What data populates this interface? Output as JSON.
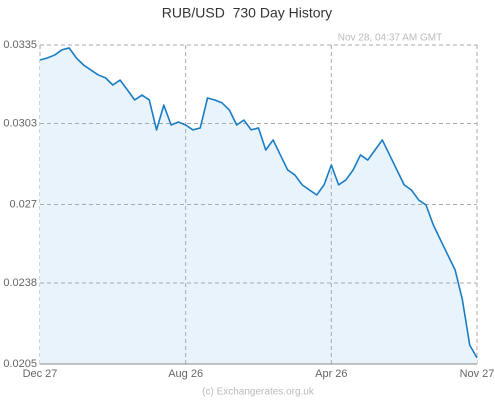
{
  "chart_data": {
    "type": "line",
    "title": "RUB/USD  730 Day History",
    "annotation": "Nov 28, 04:37 AM GMT",
    "credit": "(c) Exchangerates.org.uk",
    "categories": [
      "Dec 27",
      null,
      null,
      null,
      null,
      null,
      null,
      null,
      null,
      null,
      null,
      null,
      null,
      null,
      null,
      null,
      null,
      null,
      null,
      null,
      "Aug 26",
      null,
      null,
      null,
      null,
      null,
      null,
      null,
      null,
      null,
      null,
      null,
      null,
      null,
      null,
      null,
      null,
      null,
      null,
      null,
      "Apr 26",
      null,
      null,
      null,
      null,
      null,
      null,
      null,
      null,
      null,
      null,
      null,
      null,
      null,
      null,
      null,
      null,
      null,
      null,
      null,
      "Nov 27"
    ],
    "values": [
      0.03289,
      0.03297,
      0.03309,
      0.0333,
      0.03338,
      0.03297,
      0.03268,
      0.03248,
      0.03228,
      0.03216,
      0.03187,
      0.03207,
      0.03167,
      0.03126,
      0.03146,
      0.03126,
      0.03004,
      0.03105,
      0.03024,
      0.03036,
      0.03024,
      0.03004,
      0.03012,
      0.03134,
      0.03126,
      0.03114,
      0.03085,
      0.03024,
      0.03044,
      0.03004,
      0.03012,
      0.02922,
      0.02963,
      0.02902,
      0.02841,
      0.0282,
      0.0278,
      0.02759,
      0.02739,
      0.0278,
      0.02861,
      0.0278,
      0.028,
      0.02841,
      0.02902,
      0.02881,
      0.02922,
      0.02963,
      0.02902,
      0.02841,
      0.0278,
      0.02759,
      0.02718,
      0.02698,
      0.02617,
      0.02555,
      0.02494,
      0.02433,
      0.02311,
      0.02127,
      0.02075
    ],
    "color": "#1a7dc4",
    "fill": "#e8f3fb",
    "ylim": [
      0.0205,
      0.0335
    ],
    "yticks": [
      0.0205,
      0.0238,
      0.027,
      0.0303,
      0.0335
    ],
    "grid": true
  }
}
